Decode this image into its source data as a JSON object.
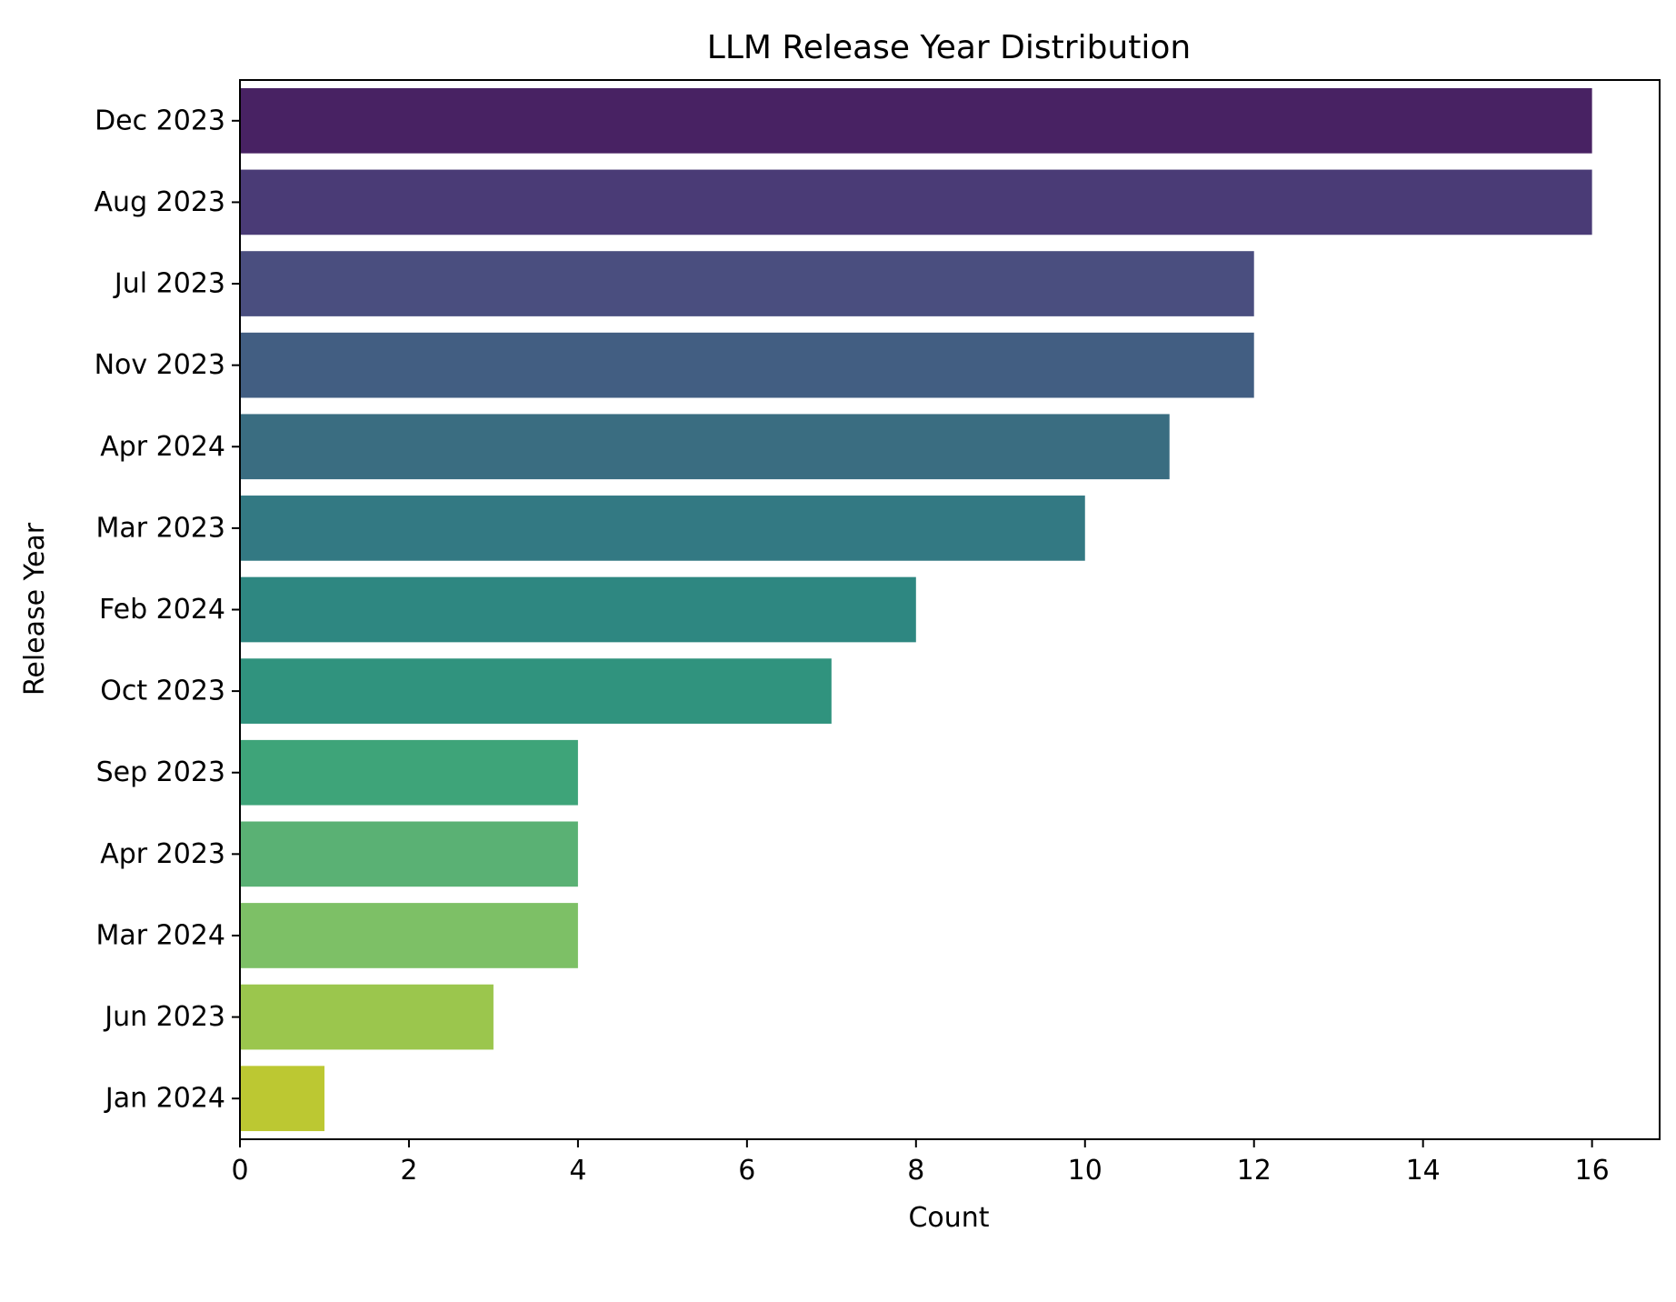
{
  "chart_data": {
    "type": "bar",
    "orientation": "horizontal",
    "title": "LLM Release Year Distribution",
    "xlabel": "Count",
    "ylabel": "Release Year",
    "xlim": [
      0,
      16.8
    ],
    "xticks": [
      0,
      2,
      4,
      6,
      8,
      10,
      12,
      14,
      16
    ],
    "grid": false,
    "categories": [
      "Dec 2023",
      "Aug 2023",
      "Jul 2023",
      "Nov 2023",
      "Apr 2024",
      "Mar 2023",
      "Feb 2024",
      "Oct 2023",
      "Sep 2023",
      "Apr 2023",
      "Mar 2024",
      "Jun 2023",
      "Jan 2024"
    ],
    "values": [
      16,
      16,
      12,
      12,
      11,
      10,
      8,
      7,
      4,
      4,
      4,
      3,
      1
    ],
    "colors": [
      "#482263",
      "#4a3b76",
      "#4a4e7f",
      "#425e82",
      "#3a6d81",
      "#337983",
      "#2e8781",
      "#30937e",
      "#3ea479",
      "#5ab174",
      "#7dc066",
      "#9bc64d",
      "#bcc832"
    ]
  }
}
